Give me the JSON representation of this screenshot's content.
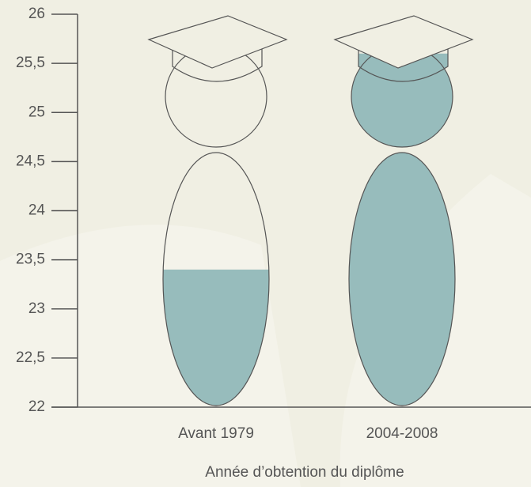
{
  "chart_data": {
    "type": "bar",
    "x_label": "Année d’obtention du diplôme",
    "categories": [
      "Avant 1979",
      "2004-2008"
    ],
    "values": [
      23.4,
      25.6
    ],
    "color": "#97bcbc",
    "ylim": [
      22,
      26
    ],
    "yticks": [
      22,
      {
        "value": 22.5,
        "label": "22,5"
      },
      23,
      {
        "value": 23.5,
        "label": "23,5"
      },
      24,
      {
        "value": 24.5,
        "label": "24,5"
      },
      25,
      {
        "value": 25.5,
        "label": "25,5"
      },
      26
    ]
  }
}
